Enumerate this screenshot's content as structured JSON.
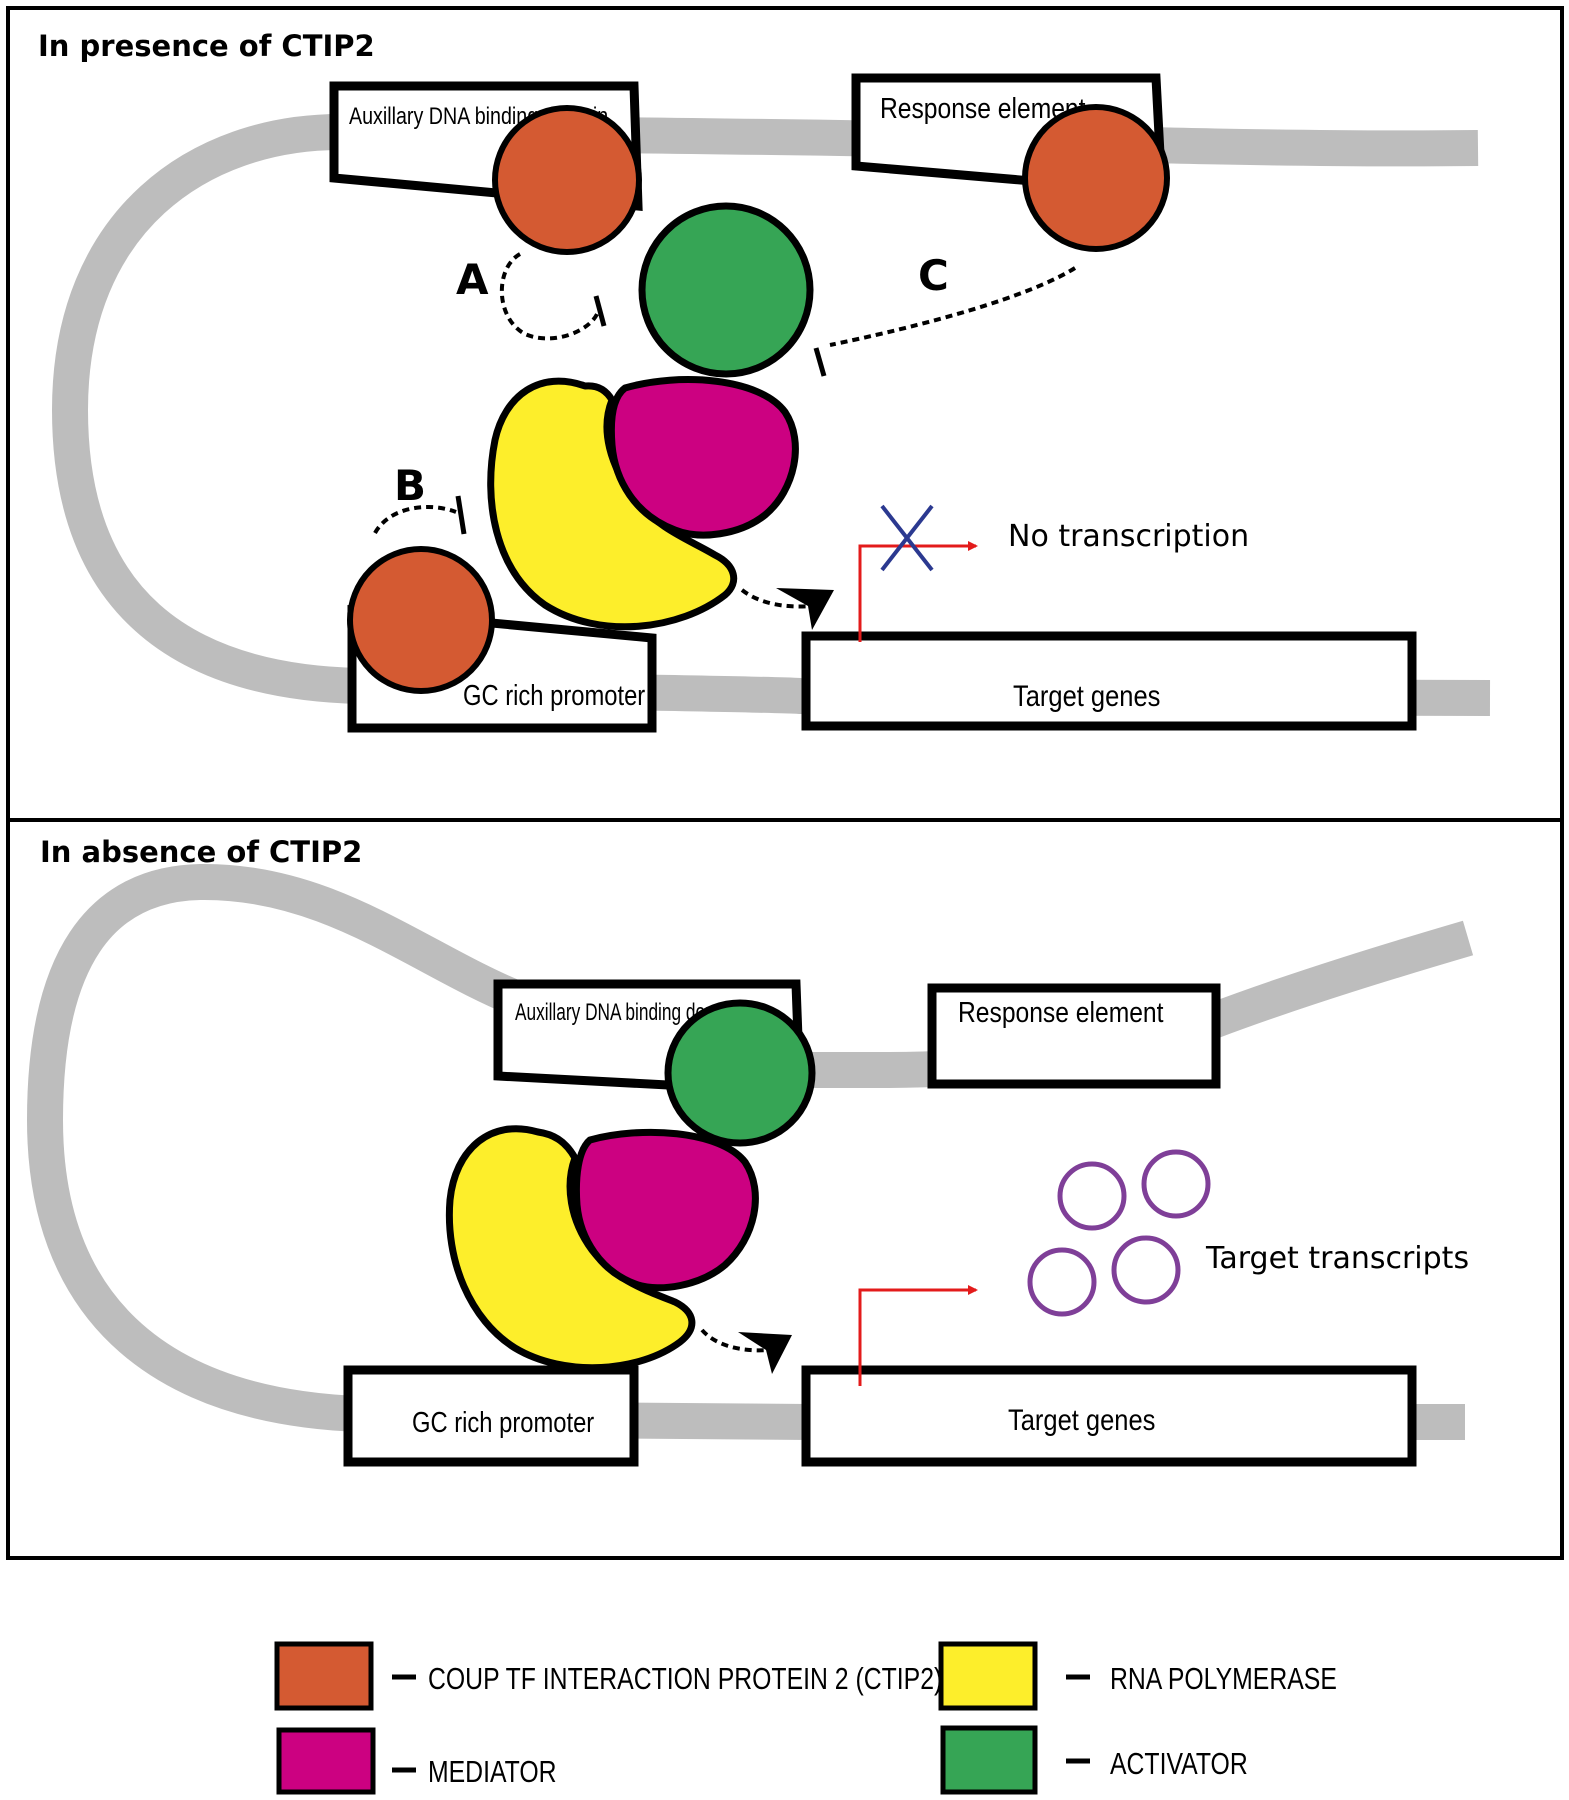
{
  "panels": {
    "presence": {
      "title": "In presence of CTIP2",
      "auxiliary_label": "Auxillary DNA binding domain",
      "response_label": "Response element",
      "gc_label": "GC rich promoter",
      "target_label": "Target genes",
      "arrow_a": "A",
      "arrow_b": "B",
      "arrow_c": "C",
      "outcome": "No transcription"
    },
    "absence": {
      "title": "In absence of CTIP2",
      "auxiliary_label": "Auxillary DNA binding domain",
      "response_label": "Response element",
      "gc_label": "GC rich promoter",
      "target_label": "Target genes",
      "outcome": "Target transcripts"
    }
  },
  "legend": [
    {
      "label": "COUP TF INTERACTION PROTEIN 2 (CTIP2)",
      "color": "#d45a32"
    },
    {
      "label": "RNA POLYMERASE",
      "color": "#fdee2b"
    },
    {
      "label": "MEDIATOR",
      "color": "#cc0181"
    },
    {
      "label": "ACTIVATOR",
      "color": "#36a555"
    }
  ],
  "colors": {
    "dna": "#bdbdbd",
    "ctip2": "#d45a32",
    "polymerase": "#fdee2b",
    "mediator": "#cc0181",
    "activator": "#36a555",
    "tss_arrow": "#e31b1b",
    "block_x": "#2b3990",
    "transcripts": "#7f3f98"
  }
}
